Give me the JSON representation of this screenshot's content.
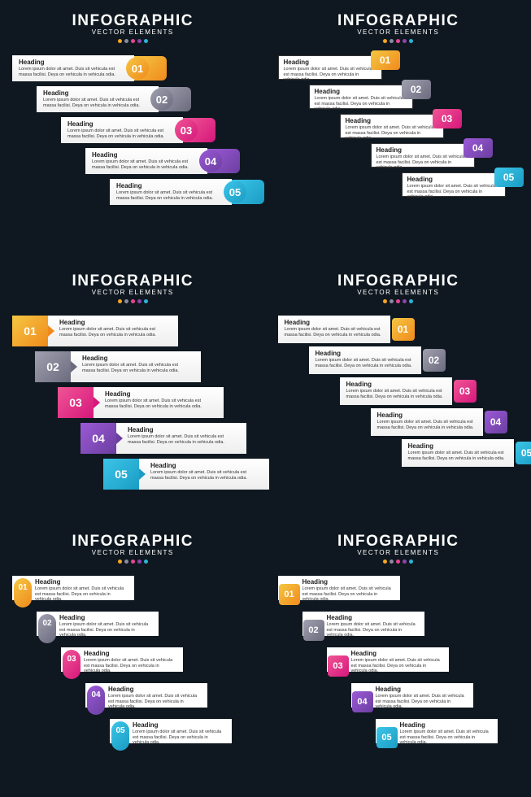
{
  "title": "INFOGRAPHIC",
  "subtitle": "VECTOR ELEMENTS",
  "dot_colors": [
    "#f5a623",
    "#8b8b9e",
    "#e84393",
    "#8e44ad",
    "#2bb4d8"
  ],
  "background_color": "#0f1820",
  "heading_text": "Heading",
  "body_text": "Lorem ipsum dolor sit amet. Duis sit vehicula est massa facilisi. Deya on vehicula in vehicula odia.",
  "steps": [
    {
      "num": "01",
      "grad_from": "#f5c742",
      "grad_to": "#f08a1d"
    },
    {
      "num": "02",
      "grad_from": "#a0a0b0",
      "grad_to": "#6b6b7e"
    },
    {
      "num": "03",
      "grad_from": "#f05596",
      "grad_to": "#d6177b"
    },
    {
      "num": "04",
      "grad_from": "#9b59d6",
      "grad_to": "#6b3fa0"
    },
    {
      "num": "05",
      "grad_from": "#3cc5e8",
      "grad_to": "#1a9cc4"
    }
  ],
  "layouts": {
    "A": {
      "offsets": [
        0,
        30,
        60,
        90,
        120
      ],
      "item_height": 38
    },
    "B": {
      "offsets": [
        0,
        38,
        76,
        114,
        152
      ],
      "item_height": 36
    },
    "C": {
      "offsets": [
        0,
        28,
        56,
        84,
        112
      ],
      "item_height": 44
    },
    "D": {
      "offsets": [
        0,
        38,
        76,
        114,
        152
      ],
      "item_height": 38
    },
    "E": {
      "offsets": [
        0,
        30,
        60,
        90,
        120
      ],
      "item_height": 40
    },
    "F": {
      "offsets": [
        0,
        30,
        60,
        90,
        120
      ],
      "item_height": 40
    }
  }
}
